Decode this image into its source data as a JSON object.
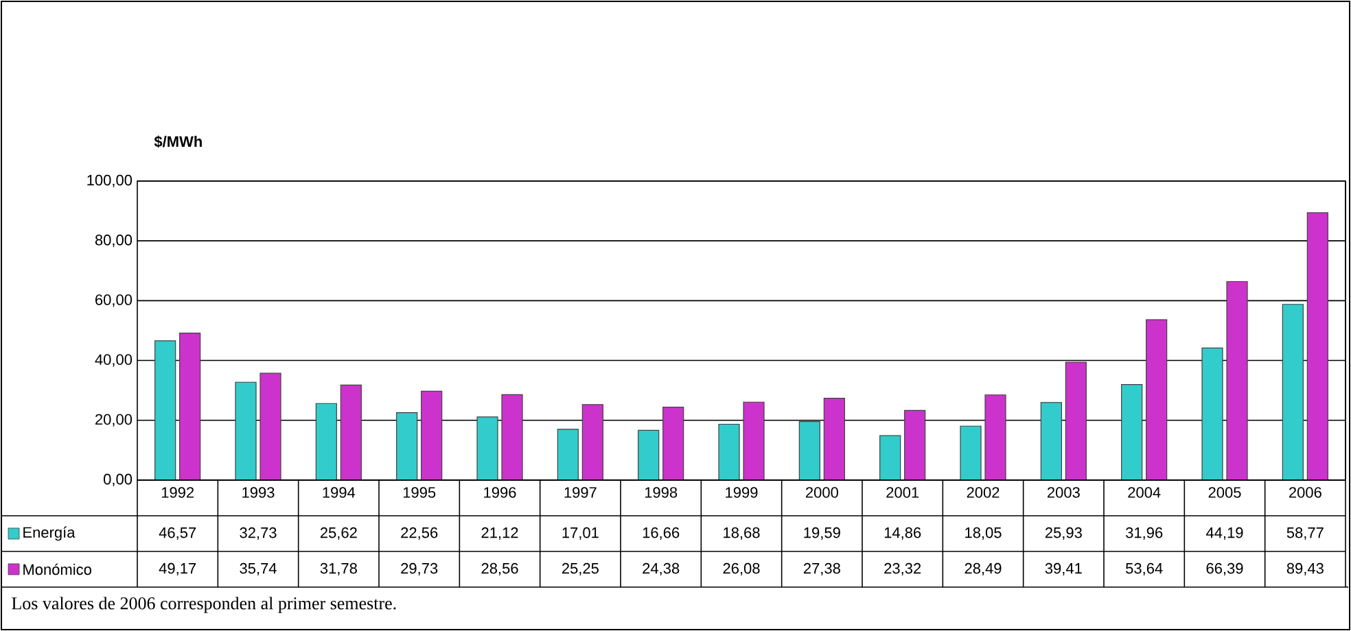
{
  "chart_data": {
    "type": "bar",
    "ylabel": "$/MWh",
    "categories": [
      "1992",
      "1993",
      "1994",
      "1995",
      "1996",
      "1997",
      "1998",
      "1999",
      "2000",
      "2001",
      "2002",
      "2003",
      "2004",
      "2005",
      "2006"
    ],
    "series": [
      {
        "name": "Energía",
        "color": "#33cccc",
        "values": [
          46.57,
          32.73,
          25.62,
          22.56,
          21.12,
          17.01,
          16.66,
          18.68,
          19.59,
          14.86,
          18.05,
          25.93,
          31.96,
          44.19,
          58.77
        ],
        "value_labels": [
          "46,57",
          "32,73",
          "25,62",
          "22,56",
          "21,12",
          "17,01",
          "16,66",
          "18,68",
          "19,59",
          "14,86",
          "18,05",
          "25,93",
          "31,96",
          "44,19",
          "58,77"
        ]
      },
      {
        "name": "Monómico",
        "color": "#cc33cc",
        "values": [
          49.17,
          35.74,
          31.78,
          29.73,
          28.56,
          25.25,
          24.38,
          26.08,
          27.38,
          23.32,
          28.49,
          39.41,
          53.64,
          66.39,
          89.43
        ],
        "value_labels": [
          "49,17",
          "35,74",
          "31,78",
          "29,73",
          "28,56",
          "25,25",
          "24,38",
          "26,08",
          "27,38",
          "23,32",
          "28,49",
          "39,41",
          "53,64",
          "66,39",
          "89,43"
        ]
      }
    ],
    "ylim": [
      0,
      100
    ],
    "yticks": [
      {
        "value": 0,
        "label": "0,00"
      },
      {
        "value": 20,
        "label": "20,00"
      },
      {
        "value": 40,
        "label": "40,00"
      },
      {
        "value": 60,
        "label": "60,00"
      },
      {
        "value": 80,
        "label": "80,00"
      },
      {
        "value": 100,
        "label": "100,00"
      }
    ],
    "grid": "y",
    "legend": "bottom",
    "annotations": [
      "Los valores de 2006 corresponden al primer semestre."
    ]
  }
}
